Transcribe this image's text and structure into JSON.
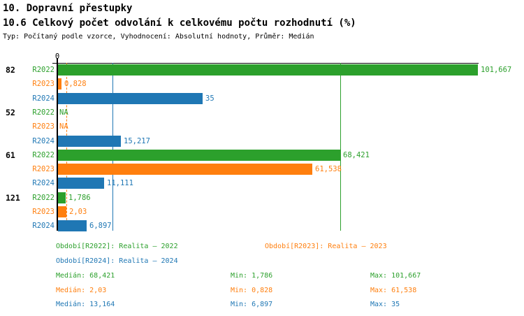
{
  "header": {
    "title": "10. Dopravní přestupky",
    "subtitle": "10.6 Celkový počet odvolání k celkovému počtu rozhodnutí (%)",
    "meta": "Typ: Počítaný podle vzorce, Vyhodnocení: Absolutní hodnoty, Průměr: Medián"
  },
  "colors": {
    "r2022": "#2ca02c",
    "r2023": "#ff7f0e",
    "r2024": "#1f77b4",
    "axis": "#000000",
    "background": "#ffffff"
  },
  "chart_data": {
    "type": "bar",
    "orientation": "horizontal",
    "x_axis": {
      "zero_label": "0",
      "min": 0,
      "max": 101.667,
      "ticks": [
        "0"
      ],
      "grid": false
    },
    "groups": [
      "82",
      "52",
      "61",
      "121"
    ],
    "na_label": "NA",
    "series": [
      {
        "name": "R2022",
        "color_key": "r2022",
        "median": 68.421,
        "median_line_style": "solid",
        "values": [
          101.667,
          null,
          68.421,
          1.786
        ],
        "value_labels": [
          "101,667",
          "NA",
          "68,421",
          "1,786"
        ]
      },
      {
        "name": "R2023",
        "color_key": "r2023",
        "median": 2.03,
        "median_line_style": "dashed",
        "values": [
          0.828,
          null,
          61.538,
          2.03
        ],
        "value_labels": [
          "0,828",
          "NA",
          "61,538",
          "2,03"
        ]
      },
      {
        "name": "R2024",
        "color_key": "r2024",
        "median": 13.164,
        "median_line_style": "solid",
        "values": [
          35,
          15.217,
          11.111,
          6.897
        ],
        "value_labels": [
          "35",
          "15,217",
          "11,111",
          "6,897"
        ]
      }
    ],
    "stats": [
      {
        "color_key": "r2022",
        "median": "Medián: 68,421",
        "min": "Min: 1,786",
        "max": "Max: 101,667"
      },
      {
        "color_key": "r2023",
        "median": "Medián: 2,03",
        "min": "Min: 0,828",
        "max": "Max: 61,538"
      },
      {
        "color_key": "r2024",
        "median": "Medián: 13,164",
        "min": "Min: 6,897",
        "max": "Max: 35"
      }
    ]
  },
  "legend": {
    "items": [
      {
        "text": "Období[R2022]: Realita – 2022",
        "color_key": "r2022"
      },
      {
        "text": "Období[R2023]: Realita – 2023",
        "color_key": "r2023"
      },
      {
        "text": "Období[R2024]: Realita – 2024",
        "color_key": "r2024"
      }
    ]
  }
}
